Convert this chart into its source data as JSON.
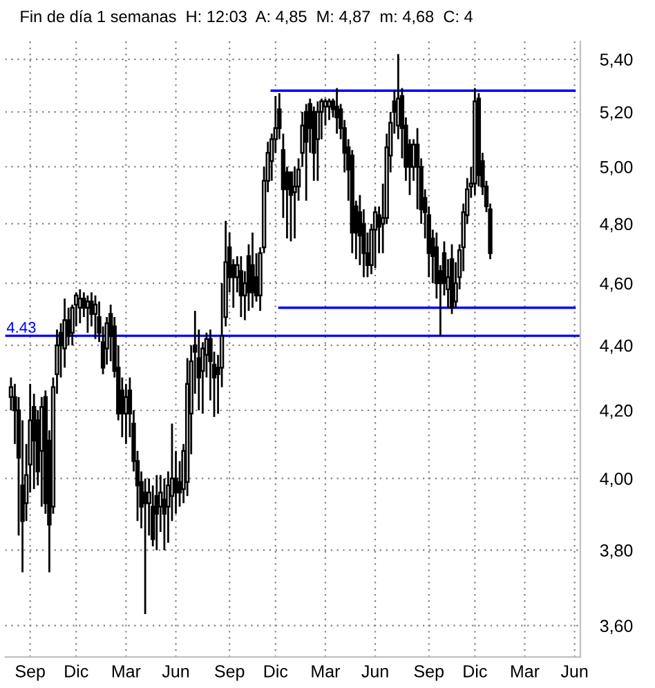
{
  "chart_data": {
    "type": "candlestick",
    "title": "Fin de día 1 semanas  H: 12:03  A: 4,85  M: 4,87  m: 4,68  C: 4",
    "log": "y",
    "grid": true,
    "categories": [
      null,
      null,
      null,
      null,
      null,
      "Sep",
      null,
      null,
      null,
      null,
      null,
      null,
      null,
      null,
      null,
      null,
      null,
      "Dic",
      null,
      null,
      null,
      null,
      null,
      null,
      null,
      null,
      null,
      null,
      null,
      null,
      "Mar",
      null,
      null,
      null,
      null,
      null,
      null,
      null,
      null,
      null,
      null,
      null,
      null,
      "Jun",
      null,
      null,
      null,
      null,
      null,
      null,
      null,
      null,
      null,
      null,
      null,
      null,
      null,
      "Sep",
      null,
      null,
      null,
      null,
      null,
      null,
      null,
      null,
      null,
      null,
      null,
      "Dic",
      null,
      null,
      null,
      null,
      null,
      null,
      null,
      null,
      null,
      null,
      null,
      null,
      "Mar",
      null,
      null,
      null,
      null,
      null,
      null,
      null,
      null,
      null,
      null,
      null,
      null,
      "Jun",
      null,
      null,
      null,
      null,
      null,
      null,
      null,
      null,
      null,
      null,
      null,
      null,
      null,
      "Sep",
      null,
      null,
      null,
      null,
      null,
      null,
      null,
      null,
      null,
      null,
      null,
      "Dic",
      null,
      null,
      null,
      null,
      null,
      null,
      null,
      null,
      null,
      null,
      null,
      null,
      "Mar",
      null,
      null,
      null,
      null,
      null,
      null,
      null,
      null,
      null,
      null,
      null,
      null,
      "Jun"
    ],
    "ohlc": [
      [
        4.24,
        4.3,
        4.2,
        4.27
      ],
      [
        4.24,
        4.28,
        4.1,
        4.2
      ],
      [
        4.2,
        4.24,
        3.84,
        4.06
      ],
      [
        3.98,
        4.17,
        3.74,
        3.88
      ],
      [
        3.93,
        4.1,
        3.88,
        4.01
      ],
      [
        4.04,
        4.28,
        3.96,
        4.17
      ],
      [
        4.21,
        4.25,
        3.97,
        4.11
      ],
      [
        4.17,
        4.2,
        3.98,
        4.02
      ],
      [
        4.08,
        4.24,
        3.92,
        4.21
      ],
      [
        4.24,
        4.26,
        3.9,
        3.93
      ],
      [
        4.11,
        4.14,
        3.74,
        3.87
      ],
      [
        3.92,
        4.3,
        3.9,
        4.27
      ],
      [
        4.31,
        4.45,
        4.25,
        4.4
      ],
      [
        4.44,
        4.47,
        4.3,
        4.4
      ],
      [
        4.39,
        4.55,
        4.33,
        4.48
      ],
      [
        4.48,
        4.52,
        4.4,
        4.43
      ],
      [
        4.44,
        4.53,
        4.4,
        4.52
      ],
      [
        4.53,
        4.57,
        4.46,
        4.56
      ],
      [
        4.52,
        4.58,
        4.47,
        4.55
      ],
      [
        4.55,
        4.57,
        4.49,
        4.52
      ],
      [
        4.52,
        4.56,
        4.44,
        4.54
      ],
      [
        4.54,
        4.57,
        4.46,
        4.5
      ],
      [
        4.5,
        4.56,
        4.42,
        4.53
      ],
      [
        4.49,
        4.54,
        4.41,
        4.44
      ],
      [
        4.41,
        4.46,
        4.31,
        4.33
      ],
      [
        4.39,
        4.49,
        4.34,
        4.47
      ],
      [
        4.5,
        4.53,
        4.35,
        4.43
      ],
      [
        4.46,
        4.49,
        4.3,
        4.32
      ],
      [
        4.33,
        4.4,
        4.17,
        4.19
      ],
      [
        4.26,
        4.3,
        4.12,
        4.19
      ],
      [
        4.19,
        4.28,
        4.1,
        4.24
      ],
      [
        4.26,
        4.3,
        4.12,
        4.19
      ],
      [
        4.16,
        4.2,
        4.02,
        4.05
      ],
      [
        4.05,
        4.08,
        3.88,
        3.98
      ],
      [
        3.99,
        4.02,
        3.86,
        3.92
      ],
      [
        3.96,
        4.0,
        3.63,
        3.93
      ],
      [
        3.93,
        4.0,
        3.84,
        3.96
      ],
      [
        3.92,
        3.98,
        3.81,
        3.83
      ],
      [
        3.95,
        4.01,
        3.8,
        3.9
      ],
      [
        3.92,
        4.01,
        3.85,
        3.96
      ],
      [
        3.94,
        4.0,
        3.8,
        3.9
      ],
      [
        3.92,
        4.02,
        3.82,
        3.98
      ],
      [
        3.95,
        4.16,
        3.88,
        4.0
      ],
      [
        4.0,
        4.08,
        3.9,
        3.96
      ],
      [
        3.99,
        4.05,
        3.92,
        3.96
      ],
      [
        3.97,
        4.1,
        3.93,
        4.08
      ],
      [
        3.99,
        4.36,
        3.95,
        4.28
      ],
      [
        4.19,
        4.4,
        4.07,
        4.35
      ],
      [
        4.4,
        4.51,
        4.25,
        4.38
      ],
      [
        4.36,
        4.45,
        4.2,
        4.3
      ],
      [
        4.32,
        4.41,
        4.19,
        4.39
      ],
      [
        4.37,
        4.44,
        4.3,
        4.42
      ],
      [
        4.42,
        4.45,
        4.23,
        4.35
      ],
      [
        4.34,
        4.38,
        4.18,
        4.3
      ],
      [
        4.33,
        4.37,
        4.19,
        4.31
      ],
      [
        4.33,
        4.6,
        4.27,
        4.43
      ],
      [
        4.49,
        4.81,
        4.46,
        4.67
      ],
      [
        4.72,
        4.77,
        4.57,
        4.62
      ],
      [
        4.66,
        4.68,
        4.52,
        4.62
      ],
      [
        4.62,
        4.69,
        4.57,
        4.66
      ],
      [
        4.64,
        4.69,
        4.49,
        4.56
      ],
      [
        4.56,
        4.64,
        4.48,
        4.6
      ],
      [
        4.69,
        4.73,
        4.51,
        4.57
      ],
      [
        4.66,
        4.77,
        4.52,
        4.57
      ],
      [
        4.62,
        4.7,
        4.54,
        4.56
      ],
      [
        4.56,
        4.72,
        4.51,
        4.7
      ],
      [
        4.72,
        5.0,
        4.7,
        4.95
      ],
      [
        4.95,
        5.09,
        4.91,
        5.05
      ],
      [
        5.02,
        5.12,
        4.95,
        5.1
      ],
      [
        5.1,
        5.26,
        5.05,
        5.14
      ],
      [
        5.21,
        5.27,
        5.1,
        5.14
      ],
      [
        5.06,
        5.12,
        4.82,
        4.92
      ],
      [
        4.98,
        5.0,
        4.75,
        4.92
      ],
      [
        4.98,
        4.98,
        4.74,
        4.9
      ],
      [
        4.91,
        5.0,
        4.75,
        4.93
      ],
      [
        4.93,
        5.03,
        4.88,
        4.99
      ],
      [
        5.05,
        5.2,
        5.0,
        5.15
      ],
      [
        5.2,
        5.23,
        4.88,
        5.09
      ],
      [
        5.23,
        5.25,
        5.05,
        5.14
      ],
      [
        5.2,
        5.22,
        4.95,
        5.05
      ],
      [
        5.1,
        5.24,
        4.95,
        5.2
      ],
      [
        5.2,
        5.25,
        5.1,
        5.24
      ],
      [
        5.22,
        5.25,
        5.15,
        5.24
      ],
      [
        5.22,
        5.25,
        5.17,
        5.24
      ],
      [
        5.24,
        5.25,
        5.18,
        5.21
      ],
      [
        5.22,
        5.29,
        5.12,
        5.18
      ],
      [
        5.21,
        5.23,
        5.1,
        5.14
      ],
      [
        5.14,
        5.17,
        4.98,
        5.05
      ],
      [
        5.07,
        5.1,
        4.88,
        4.99
      ],
      [
        5.04,
        5.06,
        4.7,
        4.77
      ],
      [
        4.86,
        4.88,
        4.68,
        4.77
      ],
      [
        4.84,
        4.9,
        4.66,
        4.76
      ],
      [
        4.8,
        4.85,
        4.62,
        4.7
      ],
      [
        4.7,
        4.77,
        4.62,
        4.66
      ],
      [
        4.66,
        4.8,
        4.63,
        4.78
      ],
      [
        4.78,
        4.86,
        4.65,
        4.84
      ],
      [
        4.83,
        4.86,
        4.7,
        4.79
      ],
      [
        4.8,
        4.94,
        4.7,
        4.82
      ],
      [
        4.82,
        5.12,
        4.8,
        5.07
      ],
      [
        5.04,
        5.2,
        4.98,
        5.16
      ],
      [
        5.24,
        5.28,
        5.12,
        5.2
      ],
      [
        5.15,
        5.42,
        5.1,
        5.25
      ],
      [
        5.26,
        5.29,
        5.03,
        5.14
      ],
      [
        5.15,
        5.18,
        4.95,
        5.0
      ],
      [
        5.08,
        5.1,
        4.9,
        5.0
      ],
      [
        5.0,
        5.1,
        4.95,
        5.08
      ],
      [
        5.08,
        5.14,
        4.85,
        5.0
      ],
      [
        5.0,
        5.03,
        4.8,
        4.85
      ],
      [
        4.89,
        4.92,
        4.75,
        4.84
      ],
      [
        4.83,
        4.86,
        4.62,
        4.7
      ],
      [
        4.75,
        4.78,
        4.6,
        4.69
      ],
      [
        4.72,
        4.77,
        4.55,
        4.6
      ],
      [
        4.64,
        4.66,
        4.43,
        4.6
      ],
      [
        4.7,
        4.74,
        4.56,
        4.6
      ],
      [
        4.58,
        4.68,
        4.52,
        4.62
      ],
      [
        4.68,
        4.73,
        4.5,
        4.52
      ],
      [
        4.54,
        4.67,
        4.52,
        4.6
      ],
      [
        4.62,
        4.73,
        4.58,
        4.71
      ],
      [
        4.72,
        4.87,
        4.64,
        4.84
      ],
      [
        4.83,
        4.96,
        4.8,
        4.92
      ],
      [
        4.93,
        5.0,
        4.89,
        4.94
      ],
      [
        4.94,
        5.29,
        4.9,
        5.24
      ],
      [
        5.25,
        5.27,
        4.93,
        4.97
      ],
      [
        5.02,
        5.05,
        4.9,
        4.93
      ],
      [
        4.93,
        4.95,
        4.84,
        4.86
      ],
      [
        4.85,
        4.87,
        4.68,
        4.7
      ],
      null,
      null,
      null,
      null,
      null,
      null,
      null,
      null,
      null,
      null,
      null,
      null,
      null,
      null,
      null,
      null,
      null,
      null,
      null,
      null,
      null,
      null
    ],
    "series": [
      {
        "type": "line",
        "color": "#0000ff",
        "values": [
          null,
          null,
          null,
          null,
          null,
          null,
          null,
          null,
          null,
          null,
          null,
          null,
          null,
          null,
          null,
          null,
          null,
          null,
          null,
          null,
          null,
          null,
          null,
          null,
          null,
          null,
          null,
          null,
          null,
          null,
          null,
          null,
          null,
          null,
          null,
          null,
          null,
          null,
          null,
          null,
          null,
          null,
          null,
          null,
          null,
          null,
          null,
          null,
          null,
          null,
          null,
          null,
          null,
          null,
          null,
          null,
          null,
          null,
          null,
          null,
          null,
          null,
          null,
          null,
          null,
          null,
          null,
          null,
          5.28,
          5.28,
          5.28,
          5.28,
          5.28,
          5.28,
          5.28,
          5.28,
          5.28,
          5.28,
          5.28,
          5.28,
          5.28,
          5.28,
          5.28,
          5.28,
          5.28,
          5.28,
          5.28,
          5.28,
          5.28,
          5.28,
          5.28,
          5.28,
          5.28,
          5.28,
          5.28,
          5.28,
          5.28,
          5.28,
          5.28,
          5.28,
          5.28,
          5.28,
          5.28,
          5.28,
          5.28,
          5.28,
          5.28,
          5.28,
          5.28,
          5.28,
          5.28,
          5.28,
          5.28,
          5.28,
          5.28,
          5.28,
          5.28,
          5.28,
          5.28,
          5.28,
          5.28,
          5.28,
          5.28,
          5.28,
          5.28,
          5.28,
          5.28,
          5.28,
          5.28,
          5.28,
          5.28,
          5.28,
          5.28,
          5.28,
          5.28,
          5.28,
          5.28,
          5.28,
          5.28,
          5.28,
          5.28,
          5.28,
          5.28,
          5.28,
          5.28,
          5.28,
          5.28,
          5.28
        ]
      },
      {
        "type": "line",
        "color": "#0000ff",
        "values": [
          null,
          null,
          null,
          null,
          null,
          null,
          null,
          null,
          null,
          null,
          null,
          null,
          null,
          null,
          null,
          null,
          null,
          null,
          null,
          null,
          null,
          null,
          null,
          null,
          null,
          null,
          null,
          null,
          null,
          null,
          null,
          null,
          null,
          null,
          null,
          null,
          null,
          null,
          null,
          null,
          null,
          null,
          null,
          null,
          null,
          null,
          null,
          null,
          null,
          null,
          null,
          null,
          null,
          null,
          null,
          null,
          null,
          null,
          null,
          null,
          null,
          null,
          null,
          null,
          null,
          null,
          null,
          null,
          null,
          null,
          4.52,
          4.52,
          4.52,
          4.52,
          4.52,
          4.52,
          4.52,
          4.52,
          4.52,
          4.52,
          4.52,
          4.52,
          4.52,
          4.52,
          4.52,
          4.52,
          4.52,
          4.52,
          4.52,
          4.52,
          4.52,
          4.52,
          4.52,
          4.52,
          4.52,
          4.52,
          4.52,
          4.52,
          4.52,
          4.52,
          4.52,
          4.52,
          4.52,
          4.52,
          4.52,
          4.52,
          4.52,
          4.52,
          4.52,
          4.52,
          4.52,
          4.52,
          4.52,
          4.52,
          4.52,
          4.52,
          4.52,
          4.52,
          4.52,
          4.52,
          4.52,
          4.52,
          4.52,
          4.52,
          4.52,
          4.52,
          4.52,
          4.52,
          4.52,
          4.52,
          4.52,
          4.52,
          4.52,
          4.52,
          4.52,
          4.52,
          4.52,
          4.52,
          4.52,
          4.52,
          4.52,
          4.52,
          4.52,
          4.52,
          4.52,
          4.52,
          4.52,
          4.52
        ]
      }
    ],
    "ref_lines": [
      {
        "axis": "y",
        "value": 4.43,
        "label": "4.43",
        "color": "#0000ff"
      }
    ],
    "ylim": [
      3.52,
      5.47
    ],
    "yticks": [
      {
        "value": 3.6,
        "label": "3,60"
      },
      {
        "value": 3.8,
        "label": "3,80"
      },
      {
        "value": 4.0,
        "label": "4,00"
      },
      {
        "value": 4.2,
        "label": "4,20"
      },
      {
        "value": 4.4,
        "label": "4,40"
      },
      {
        "value": 4.6,
        "label": "4,60"
      },
      {
        "value": 4.8,
        "label": "4,80"
      },
      {
        "value": 5.0,
        "label": "5,00"
      },
      {
        "value": 5.2,
        "label": "5,20"
      },
      {
        "value": 5.4,
        "label": "5,40"
      }
    ]
  }
}
